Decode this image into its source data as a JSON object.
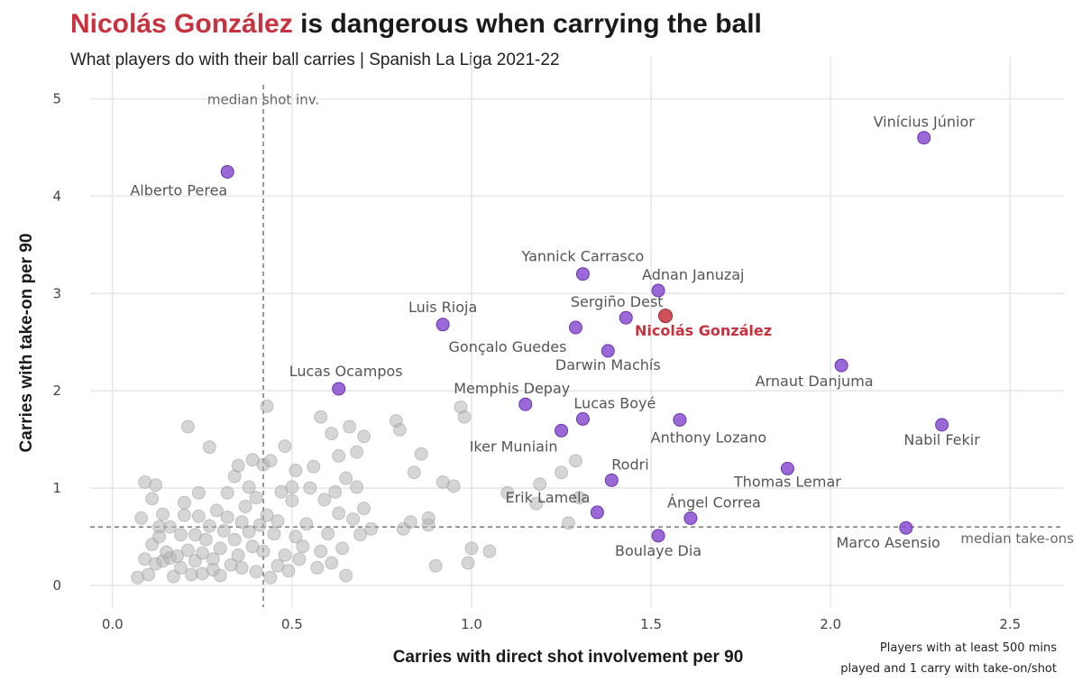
{
  "header": {
    "title_highlight": "Nicolás González",
    "title_rest": " is dangerous when carrying the ball",
    "subtitle": "What players do with their ball carries | Spanish La Liga 2021-22"
  },
  "colors": {
    "highlight": "#c8323f",
    "featured": "#8a4fd0",
    "background_points": "#b5b5b5",
    "grid": "#e6e6e6",
    "median": "#777777"
  },
  "chart_data": {
    "type": "scatter",
    "title": "Nicolás González is dangerous when carrying the ball",
    "xlabel": "Carries with direct shot involvement per 90",
    "ylabel": "Carries with take-on per 90",
    "xlim": [
      -0.1,
      2.65
    ],
    "ylim": [
      -0.15,
      5.2
    ],
    "xticks": [
      "0.0",
      "0.5",
      "1.0",
      "1.5",
      "2.0",
      "2.5"
    ],
    "yticks": [
      "0",
      "1",
      "2",
      "3",
      "4",
      "5"
    ],
    "grid": true,
    "median_x": 0.42,
    "median_y": 0.6,
    "median_x_label": "median shot inv.",
    "median_y_label": "median take-ons",
    "footnote_line1": "Players with at least 500 mins",
    "footnote_line2": "played and 1 carry with take-on/shot",
    "highlighted": {
      "name": "Nicolás González",
      "x": 1.54,
      "y": 2.77
    },
    "featured": [
      {
        "name": "Vinícius Júnior",
        "x": 2.26,
        "y": 4.6,
        "align": "middle"
      },
      {
        "name": "Alberto Perea",
        "x": 0.32,
        "y": 4.25,
        "align": "end"
      },
      {
        "name": "Yannick Carrasco",
        "x": 1.31,
        "y": 3.2,
        "align": "middle"
      },
      {
        "name": "Adnan Januzaj",
        "x": 1.52,
        "y": 3.03,
        "align": "start"
      },
      {
        "name": "Luis Rioja",
        "x": 0.92,
        "y": 2.68,
        "align": "middle"
      },
      {
        "name": "Sergiño Dest",
        "x": 1.43,
        "y": 2.75,
        "align": "middle"
      },
      {
        "name": "Gonçalo Guedes",
        "x": 1.29,
        "y": 2.65,
        "align": "end"
      },
      {
        "name": "Darwin Machís",
        "x": 1.38,
        "y": 2.41,
        "align": "middle"
      },
      {
        "name": "Arnaut Danjuma",
        "x": 2.03,
        "y": 2.26,
        "align": "middle"
      },
      {
        "name": "Lucas Ocampos",
        "x": 0.63,
        "y": 2.02,
        "align": "middle"
      },
      {
        "name": "Memphis Depay",
        "x": 1.15,
        "y": 1.86,
        "align": "middle"
      },
      {
        "name": "Lucas Boyé",
        "x": 1.31,
        "y": 1.71,
        "align": "start"
      },
      {
        "name": "Anthony Lozano",
        "x": 1.58,
        "y": 1.7,
        "align": "middle"
      },
      {
        "name": "Nabil Fekir",
        "x": 2.31,
        "y": 1.65,
        "align": "middle"
      },
      {
        "name": "Iker Muniain",
        "x": 1.25,
        "y": 1.59,
        "align": "end"
      },
      {
        "name": "Thomas Lemar",
        "x": 1.88,
        "y": 1.2,
        "align": "middle"
      },
      {
        "name": "Rodri",
        "x": 1.39,
        "y": 1.08,
        "align": "start"
      },
      {
        "name": "Erik Lamela",
        "x": 1.35,
        "y": 0.75,
        "align": "end"
      },
      {
        "name": "Ángel Correa",
        "x": 1.61,
        "y": 0.69,
        "align": "middle"
      },
      {
        "name": "Marco Asensio",
        "x": 2.21,
        "y": 0.59,
        "align": "end"
      },
      {
        "name": "Boulaye Dia",
        "x": 1.52,
        "y": 0.51,
        "align": "middle"
      }
    ],
    "others": [
      [
        0.07,
        0.08
      ],
      [
        0.08,
        0.69
      ],
      [
        0.09,
        1.06
      ],
      [
        0.09,
        0.27
      ],
      [
        0.1,
        0.11
      ],
      [
        0.11,
        0.42
      ],
      [
        0.11,
        0.89
      ],
      [
        0.12,
        1.03
      ],
      [
        0.12,
        0.22
      ],
      [
        0.13,
        0.6
      ],
      [
        0.13,
        0.5
      ],
      [
        0.14,
        0.25
      ],
      [
        0.14,
        0.73
      ],
      [
        0.15,
        0.34
      ],
      [
        0.16,
        0.28
      ],
      [
        0.16,
        0.6
      ],
      [
        0.17,
        0.09
      ],
      [
        0.18,
        0.3
      ],
      [
        0.19,
        0.18
      ],
      [
        0.19,
        0.52
      ],
      [
        0.2,
        0.72
      ],
      [
        0.2,
        0.85
      ],
      [
        0.21,
        1.63
      ],
      [
        0.21,
        0.36
      ],
      [
        0.22,
        0.11
      ],
      [
        0.23,
        0.25
      ],
      [
        0.23,
        0.52
      ],
      [
        0.24,
        0.95
      ],
      [
        0.24,
        0.71
      ],
      [
        0.25,
        0.33
      ],
      [
        0.25,
        0.12
      ],
      [
        0.26,
        0.47
      ],
      [
        0.27,
        0.61
      ],
      [
        0.27,
        1.42
      ],
      [
        0.28,
        0.27
      ],
      [
        0.28,
        0.16
      ],
      [
        0.29,
        0.77
      ],
      [
        0.3,
        0.38
      ],
      [
        0.3,
        0.1
      ],
      [
        0.31,
        0.56
      ],
      [
        0.32,
        0.7
      ],
      [
        0.32,
        0.95
      ],
      [
        0.33,
        0.21
      ],
      [
        0.34,
        1.12
      ],
      [
        0.34,
        0.47
      ],
      [
        0.35,
        1.23
      ],
      [
        0.35,
        0.31
      ],
      [
        0.36,
        0.65
      ],
      [
        0.36,
        0.18
      ],
      [
        0.37,
        0.81
      ],
      [
        0.38,
        0.55
      ],
      [
        0.38,
        1.01
      ],
      [
        0.39,
        1.29
      ],
      [
        0.39,
        0.4
      ],
      [
        0.4,
        0.9
      ],
      [
        0.4,
        0.14
      ],
      [
        0.41,
        0.62
      ],
      [
        0.42,
        1.24
      ],
      [
        0.42,
        0.35
      ],
      [
        0.43,
        0.72
      ],
      [
        0.43,
        1.84
      ],
      [
        0.44,
        1.28
      ],
      [
        0.44,
        0.08
      ],
      [
        0.45,
        0.53
      ],
      [
        0.46,
        0.2
      ],
      [
        0.46,
        0.66
      ],
      [
        0.47,
        0.96
      ],
      [
        0.48,
        1.43
      ],
      [
        0.48,
        0.31
      ],
      [
        0.49,
        0.15
      ],
      [
        0.5,
        0.87
      ],
      [
        0.5,
        1.01
      ],
      [
        0.51,
        0.5
      ],
      [
        0.51,
        1.18
      ],
      [
        0.52,
        0.27
      ],
      [
        0.53,
        0.4
      ],
      [
        0.54,
        0.63
      ],
      [
        0.55,
        1.0
      ],
      [
        0.56,
        1.22
      ],
      [
        0.57,
        0.18
      ],
      [
        0.58,
        1.73
      ],
      [
        0.58,
        0.35
      ],
      [
        0.59,
        0.88
      ],
      [
        0.6,
        0.53
      ],
      [
        0.61,
        1.56
      ],
      [
        0.61,
        0.23
      ],
      [
        0.62,
        0.96
      ],
      [
        0.63,
        0.74
      ],
      [
        0.63,
        1.33
      ],
      [
        0.64,
        0.38
      ],
      [
        0.65,
        0.1
      ],
      [
        0.65,
        1.1
      ],
      [
        0.66,
        1.63
      ],
      [
        0.67,
        0.68
      ],
      [
        0.68,
        1.37
      ],
      [
        0.68,
        1.01
      ],
      [
        0.69,
        0.52
      ],
      [
        0.7,
        1.53
      ],
      [
        0.7,
        0.79
      ],
      [
        0.72,
        0.58
      ],
      [
        0.79,
        1.69
      ],
      [
        0.8,
        1.6
      ],
      [
        0.81,
        0.58
      ],
      [
        0.83,
        0.65
      ],
      [
        0.84,
        1.16
      ],
      [
        0.86,
        1.35
      ],
      [
        0.88,
        0.62
      ],
      [
        0.88,
        0.69
      ],
      [
        0.9,
        0.2
      ],
      [
        0.92,
        1.06
      ],
      [
        0.95,
        1.02
      ],
      [
        0.97,
        1.83
      ],
      [
        0.98,
        1.73
      ],
      [
        0.99,
        0.23
      ],
      [
        1.0,
        0.38
      ],
      [
        1.05,
        0.35
      ],
      [
        1.1,
        0.95
      ],
      [
        1.18,
        0.84
      ],
      [
        1.19,
        1.04
      ],
      [
        1.25,
        1.16
      ],
      [
        1.27,
        0.64
      ],
      [
        1.29,
        1.28
      ],
      [
        1.3,
        0.9
      ]
    ]
  }
}
